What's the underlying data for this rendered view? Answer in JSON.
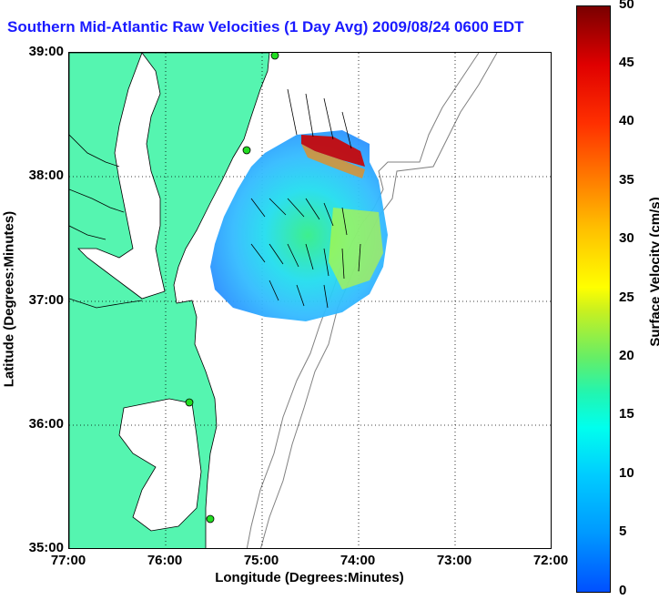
{
  "title": "Southern Mid-Atlantic Raw Velocities (1 Day Avg) 2009/08/24 0600 EDT",
  "map": {
    "xlabel": "Longitude (Degrees:Minutes)",
    "ylabel": "Latitude (Degrees:Minutes)",
    "lon_ticks": [
      "77:00",
      "76:00",
      "75:00",
      "74:00",
      "73:00",
      "72:00"
    ],
    "lat_ticks": [
      "39:00",
      "38:00",
      "37:00",
      "36:00",
      "35:00"
    ],
    "land_color": "#55f5b0",
    "water_color": "#ffffff"
  },
  "colorbar": {
    "label": "Surface Velocity (cm/s)",
    "ticks": [
      "50",
      "45",
      "40",
      "35",
      "30",
      "25",
      "20",
      "15",
      "10",
      "5",
      "0"
    ],
    "min_color": "#0050ff",
    "max_color": "#7a0000"
  }
}
